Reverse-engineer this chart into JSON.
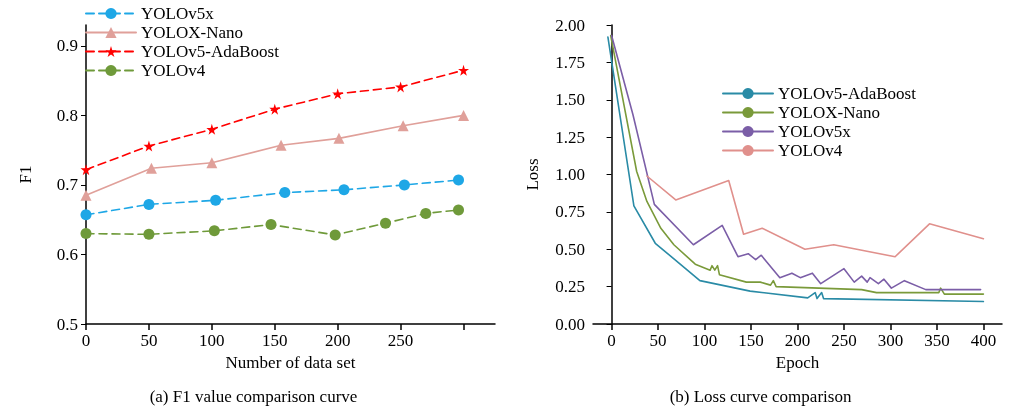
{
  "chart_data": [
    {
      "type": "line",
      "title": "(a) F1 value comparison curve",
      "xlabel": "Number of data set",
      "ylabel": "F1",
      "xlim": [
        0,
        325
      ],
      "xticks": [
        0,
        50,
        100,
        150,
        200,
        250,
        {
          "value": 300,
          "label": null
        }
      ],
      "ylim": [
        0.5,
        0.93
      ],
      "yticks": [
        0.5,
        0.6,
        0.7,
        0.8,
        0.9
      ],
      "grid": false,
      "legend": "top left",
      "series": [
        {
          "name": "YOLOv5x",
          "color": "#1ea7e6",
          "marker": "circle",
          "line_style": "dashed",
          "x": [
            0,
            50,
            103,
            158,
            205,
            253,
            296
          ],
          "values": [
            0.657,
            0.672,
            0.678,
            0.689,
            0.693,
            0.7,
            0.707
          ]
        },
        {
          "name": "YOLOX-Nano",
          "color": "#e0a09a",
          "marker": "triangle",
          "line_style": "solid",
          "x": [
            0,
            52,
            100,
            155,
            201,
            252,
            300
          ],
          "values": [
            0.685,
            0.724,
            0.732,
            0.757,
            0.767,
            0.785,
            0.8
          ]
        },
        {
          "name": "YOLOv5-AdaBoost",
          "color": "#ff0000",
          "marker": "star",
          "line_style": "dashed",
          "x": [
            0,
            50,
            100,
            150,
            200,
            250,
            300
          ],
          "values": [
            0.722,
            0.756,
            0.78,
            0.809,
            0.831,
            0.841,
            0.865
          ]
        },
        {
          "name": "YOLOv4",
          "color": "#6f9a3a",
          "marker": "circle",
          "line_style": "dashed",
          "x": [
            0,
            50,
            102,
            147,
            198,
            238,
            270,
            296
          ],
          "values": [
            0.63,
            0.629,
            0.634,
            0.643,
            0.628,
            0.645,
            0.659,
            0.664
          ]
        }
      ]
    },
    {
      "type": "line",
      "title": "(b) Loss curve comparison",
      "xlabel": "Epoch",
      "ylabel": "Loss",
      "xlim": [
        -20,
        420
      ],
      "xticks": [
        0,
        50,
        100,
        150,
        200,
        250,
        300,
        350,
        400
      ],
      "ylim": [
        0,
        2
      ],
      "yticks": [
        {
          "value": 0,
          "label": "0.00"
        },
        0.25,
        {
          "value": 0.5,
          "label": "0.50"
        },
        0.75,
        {
          "value": 1,
          "label": "1.00"
        },
        1.25,
        {
          "value": 1.5,
          "label": "1.50"
        },
        1.75,
        {
          "value": 2,
          "label": "2.00"
        }
      ],
      "grid": false,
      "legend": "top right",
      "marker": "none",
      "line_style": "solid",
      "series": [
        {
          "name": "YOLOv5-AdaBoost",
          "color": "#2a8ba6",
          "x": [
            -4,
            24,
            47,
            95,
            149,
            211,
            219,
            221,
            226,
            228,
            400
          ],
          "values": [
            1.92,
            0.79,
            0.54,
            0.29,
            0.22,
            0.175,
            0.21,
            0.17,
            0.21,
            0.17,
            0.15
          ]
        },
        {
          "name": "YOLOX-Nano",
          "color": "#7a9a3a",
          "x": [
            -1,
            27,
            38,
            53,
            67,
            90,
            106,
            108,
            111,
            114,
            116,
            145,
            160,
            171,
            174,
            177,
            269,
            285,
            352,
            354,
            358,
            400
          ],
          "values": [
            1.93,
            1.02,
            0.82,
            0.64,
            0.53,
            0.4,
            0.36,
            0.39,
            0.36,
            0.39,
            0.33,
            0.28,
            0.28,
            0.26,
            0.29,
            0.25,
            0.23,
            0.21,
            0.21,
            0.24,
            0.2,
            0.2
          ]
        },
        {
          "name": "YOLOv5x",
          "color": "#7b5ea7",
          "x": [
            0,
            23,
            46,
            88,
            119,
            136,
            147,
            155,
            161,
            181,
            194,
            203,
            216,
            225,
            250,
            261,
            269,
            275,
            278,
            287,
            293,
            301,
            315,
            338,
            397
          ],
          "values": [
            1.93,
            1.4,
            0.8,
            0.53,
            0.66,
            0.45,
            0.47,
            0.43,
            0.46,
            0.31,
            0.34,
            0.31,
            0.34,
            0.27,
            0.37,
            0.28,
            0.32,
            0.28,
            0.31,
            0.27,
            0.3,
            0.24,
            0.29,
            0.23,
            0.23
          ]
        },
        {
          "name": "YOLOv4",
          "color": "#e0908c",
          "x": [
            38,
            69,
            126,
            142,
            162,
            208,
            239,
            305,
            342,
            400
          ],
          "values": [
            0.99,
            0.83,
            0.96,
            0.6,
            0.64,
            0.5,
            0.53,
            0.45,
            0.67,
            0.57
          ]
        }
      ]
    }
  ]
}
